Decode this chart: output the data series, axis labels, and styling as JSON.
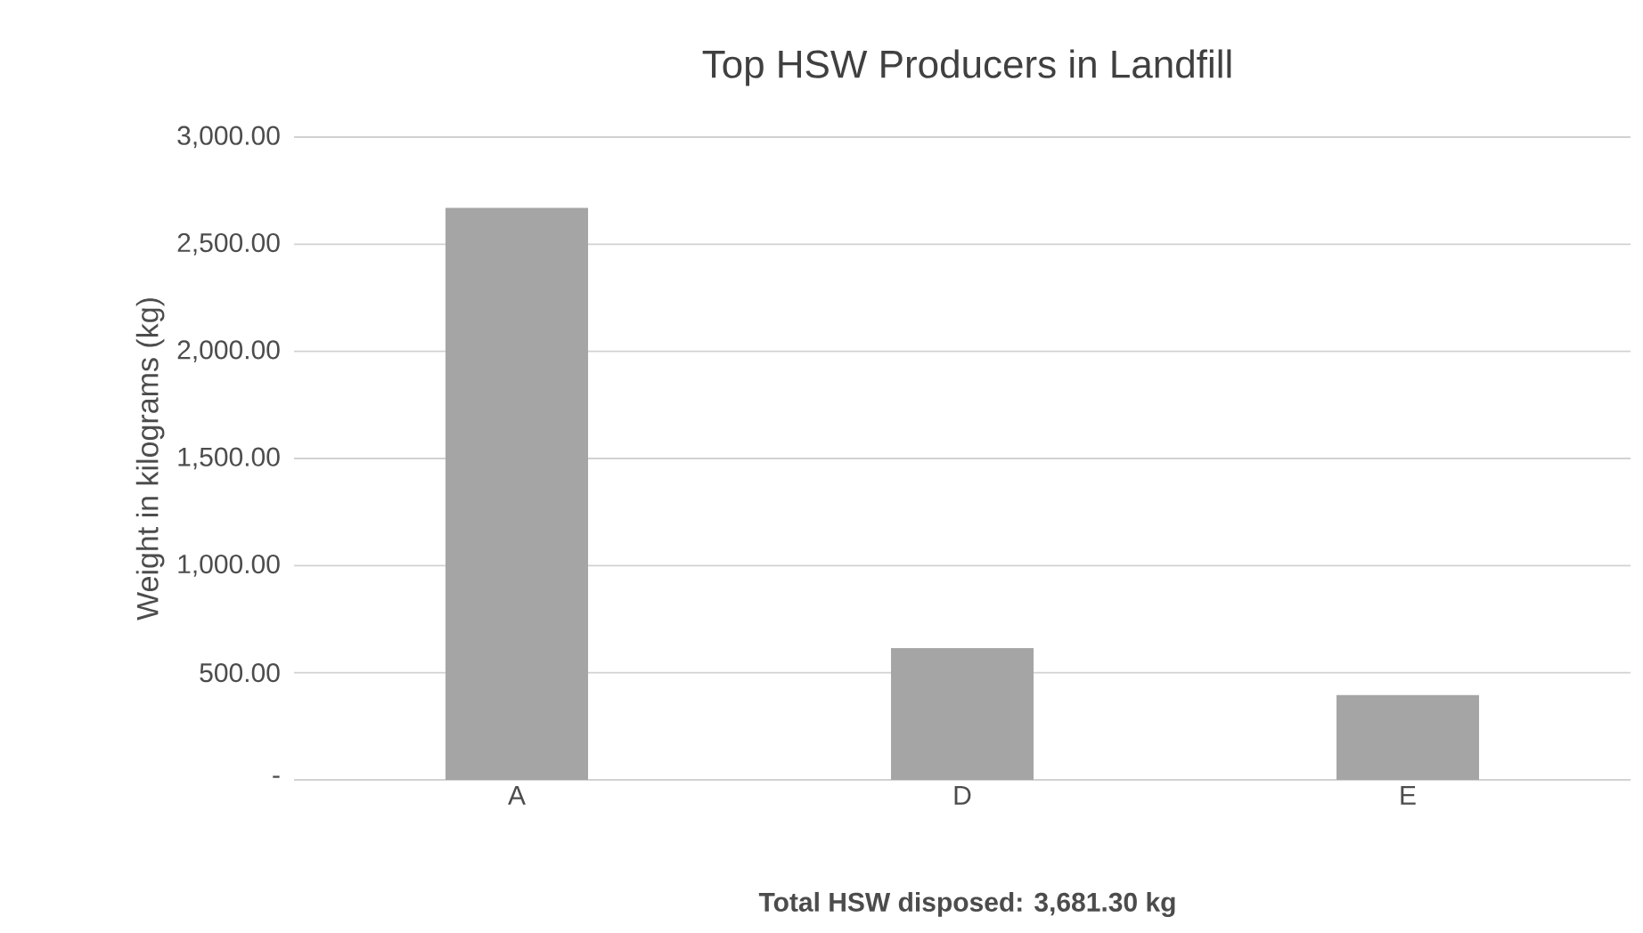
{
  "chart_data": {
    "type": "bar",
    "title": "Top HSW Producers in Landfill",
    "xlabel": "Total HSW disposed: 3,681.30 kg",
    "ylabel": "Weight in kilograms (kg)",
    "categories": [
      "A",
      "D",
      "E"
    ],
    "values": [
      2670,
      615,
      396
    ],
    "color": "#a5a5a5",
    "ylim": [
      0,
      3000
    ],
    "yticks": [
      {
        "value": 0,
        "label": "-"
      },
      {
        "value": 500,
        "label": "500.00"
      },
      {
        "value": 1000,
        "label": "1,000.00"
      },
      {
        "value": 1500,
        "label": "1,500.00"
      },
      {
        "value": 2000,
        "label": "2,000.00"
      },
      {
        "value": 2500,
        "label": "2,500.00"
      },
      {
        "value": 3000,
        "label": "3,000.00"
      }
    ],
    "grid": "y"
  }
}
